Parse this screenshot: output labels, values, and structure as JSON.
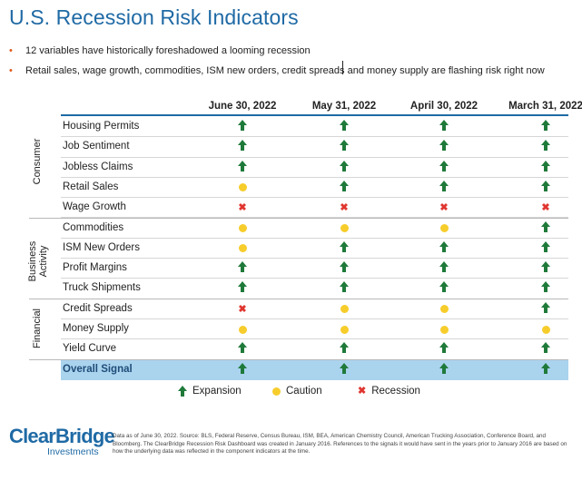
{
  "title": "U.S. Recession Risk Indicators",
  "bullets": [
    "12 variables have historically foreshadowed a looming recession",
    "Retail sales, wage growth, commodities, ISM new orders, credit spreads and money supply are flashing risk right now"
  ],
  "bullet_marker": "•",
  "columns": [
    "June 30, 2022",
    "May 31, 2022",
    "April 30, 2022",
    "March 31, 2022"
  ],
  "groups": [
    "Consumer",
    "Business Activity",
    "Financial"
  ],
  "rows": [
    {
      "label": "Housing Permits",
      "signals": [
        "expansion",
        "expansion",
        "expansion",
        "expansion"
      ]
    },
    {
      "label": "Job Sentiment",
      "signals": [
        "expansion",
        "expansion",
        "expansion",
        "expansion"
      ]
    },
    {
      "label": "Jobless Claims",
      "signals": [
        "expansion",
        "expansion",
        "expansion",
        "expansion"
      ]
    },
    {
      "label": "Retail Sales",
      "signals": [
        "caution",
        "expansion",
        "expansion",
        "expansion"
      ]
    },
    {
      "label": "Wage Growth",
      "signals": [
        "recession",
        "recession",
        "recession",
        "recession"
      ]
    },
    {
      "label": "Commodities",
      "signals": [
        "caution",
        "caution",
        "caution",
        "expansion"
      ]
    },
    {
      "label": "ISM New Orders",
      "signals": [
        "caution",
        "expansion",
        "expansion",
        "expansion"
      ]
    },
    {
      "label": "Profit Margins",
      "signals": [
        "expansion",
        "expansion",
        "expansion",
        "expansion"
      ]
    },
    {
      "label": "Truck Shipments",
      "signals": [
        "expansion",
        "expansion",
        "expansion",
        "expansion"
      ]
    },
    {
      "label": "Credit Spreads",
      "signals": [
        "recession",
        "caution",
        "caution",
        "expansion"
      ]
    },
    {
      "label": "Money Supply",
      "signals": [
        "caution",
        "caution",
        "caution",
        "caution"
      ]
    },
    {
      "label": "Yield Curve",
      "signals": [
        "expansion",
        "expansion",
        "expansion",
        "expansion"
      ]
    }
  ],
  "overall": {
    "label": "Overall Signal",
    "signals": [
      "expansion",
      "expansion",
      "expansion",
      "expansion"
    ]
  },
  "legend": [
    {
      "type": "expansion",
      "label": "Expansion"
    },
    {
      "type": "caution",
      "label": "Caution"
    },
    {
      "type": "recession",
      "label": "Recession"
    }
  ],
  "colors": {
    "expansion": "#1f7a3a",
    "caution": "#f7cd2c",
    "recession": "#e0362f",
    "title": "#1f6aa5",
    "overall_row": "#aad3ee",
    "bullet": "#e05a1a"
  },
  "logo": {
    "main": "ClearBridge",
    "sub": "Investments"
  },
  "footnote": "Data as of June 30, 2022. Source: BLS, Federal Reserve, Census Bureau, ISM, BEA, American Chemistry Council, American Trucking Association, Conference Board, and Bloomberg. The ClearBridge Recession Risk Dashboard was created in January 2016. References to the signals it would have sent in the years prior to January 2016 are based on how the underlying data was reflected in the component indicators at the time."
}
